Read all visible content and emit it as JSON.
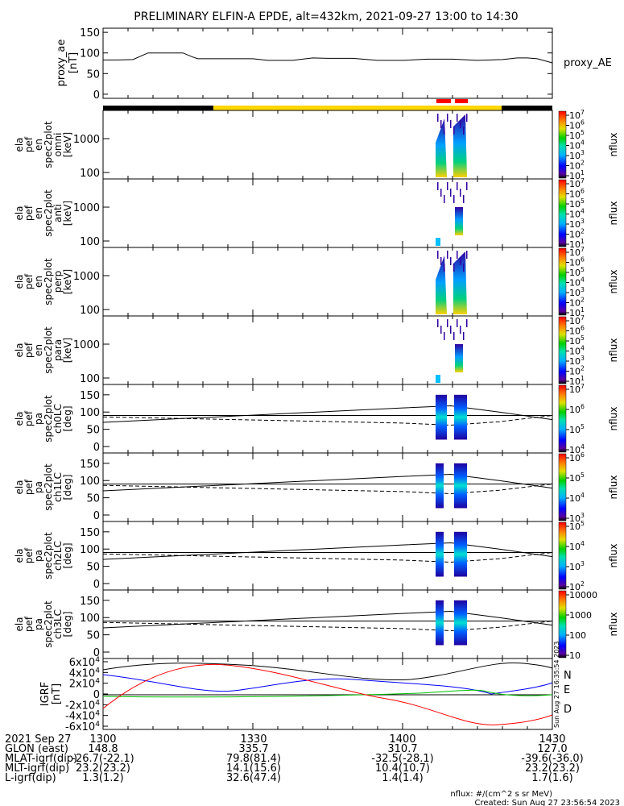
{
  "title": "PRELIMINARY ELFIN-A EPDE, alt=432km, 2021-09-27 13:00 to 14:30",
  "chart_data": [
    {
      "type": "line",
      "panel": "proxy_ae",
      "ylabel": [
        "proxy_ae",
        "[nT]"
      ],
      "legend": "proxy_AE",
      "ylim": [
        -10,
        160
      ],
      "yticks": [
        0,
        50,
        100,
        150
      ],
      "series": [
        {
          "x": [
            0,
            3,
            6,
            9,
            10,
            13,
            16,
            18,
            19,
            23,
            30,
            33,
            38,
            42,
            45,
            50,
            55,
            60,
            65,
            70,
            75,
            80,
            83,
            85,
            87,
            90
          ],
          "values": [
            83,
            83,
            84,
            100,
            100,
            100,
            100,
            90,
            86,
            86,
            86,
            82,
            82,
            88,
            87,
            87,
            82,
            82,
            85,
            85,
            82,
            84,
            88,
            88,
            86,
            76
          ]
        }
      ]
    },
    {
      "type": "heatmap",
      "panel": "omni",
      "ylabel": [
        "ela",
        "pef",
        "en",
        "spec2plot",
        "omni",
        "[keV]"
      ],
      "yticks": [
        "100",
        "1000"
      ],
      "colorbar": {
        "label": "nflux",
        "ticks": [
          "10^1",
          "10^2",
          "10^3",
          "10^4",
          "10^5",
          "10^6",
          "10^7"
        ]
      }
    },
    {
      "type": "heatmap",
      "panel": "anti",
      "ylabel": [
        "ela",
        "pef",
        "en",
        "spec2plot",
        "anti",
        "[keV]"
      ],
      "yticks": [
        "100",
        "1000"
      ],
      "colorbar": {
        "label": "nflux",
        "ticks": [
          "10^1",
          "10^2",
          "10^3",
          "10^4",
          "10^5",
          "10^6",
          "10^7"
        ]
      }
    },
    {
      "type": "heatmap",
      "panel": "perp",
      "ylabel": [
        "ela",
        "pef",
        "en",
        "spec2plot",
        "perp",
        "[keV]"
      ],
      "yticks": [
        "100",
        "1000"
      ],
      "colorbar": {
        "label": "nflux",
        "ticks": [
          "10^1",
          "10^2",
          "10^3",
          "10^4",
          "10^5",
          "10^6",
          "10^7"
        ]
      }
    },
    {
      "type": "heatmap",
      "panel": "para",
      "ylabel": [
        "ela",
        "pef",
        "en",
        "spec2plot",
        "para",
        "[keV]"
      ],
      "yticks": [
        "100",
        "1000"
      ],
      "colorbar": {
        "label": "nflux",
        "ticks": [
          "10^1",
          "10^2",
          "10^3",
          "10^4",
          "10^5",
          "10^6",
          "10^7"
        ]
      }
    },
    {
      "type": "heatmap",
      "panel": "ch0LC",
      "ylabel": [
        "ela",
        "pef",
        "pa",
        "spec2plot",
        "ch0LC",
        "[deg]"
      ],
      "yticks": [
        "0",
        "50",
        "100",
        "150"
      ],
      "colorbar": {
        "label": "nflux",
        "ticks": [
          "10^4",
          "10^5",
          "10^6",
          "10^7"
        ]
      }
    },
    {
      "type": "heatmap",
      "panel": "ch1LC",
      "ylabel": [
        "ela",
        "pef",
        "pa",
        "spec2plot",
        "ch1LC",
        "[deg]"
      ],
      "yticks": [
        "0",
        "50",
        "100",
        "150"
      ],
      "colorbar": {
        "label": "nflux",
        "ticks": [
          "10^3",
          "10^4",
          "10^5",
          "10^6"
        ]
      }
    },
    {
      "type": "heatmap",
      "panel": "ch2LC",
      "ylabel": [
        "ela",
        "pef",
        "pa",
        "spec2plot",
        "ch2LC",
        "[deg]"
      ],
      "yticks": [
        "0",
        "50",
        "100",
        "150"
      ],
      "colorbar": {
        "label": "nflux",
        "ticks": [
          "10^2",
          "10^3",
          "10^4",
          "10^5"
        ]
      }
    },
    {
      "type": "heatmap",
      "panel": "ch3LC",
      "ylabel": [
        "ela",
        "pef",
        "pa",
        "spec2plot",
        "ch3LC",
        "[deg]"
      ],
      "yticks": [
        "0",
        "50",
        "100",
        "150"
      ],
      "colorbar": {
        "label": "nflux",
        "ticks": [
          "10",
          "100",
          "1000",
          "10000"
        ]
      }
    },
    {
      "type": "line",
      "panel": "IGRF",
      "ylabel": [
        "IGRF",
        "[nT]"
      ],
      "yticks": [
        "-6x10^4",
        "-4x10^4",
        "-2x10^4",
        "0",
        "2x10^4",
        "4x10^4",
        "6x10^4"
      ],
      "series": [
        {
          "name": "N",
          "color": "#0000ff"
        },
        {
          "name": "E",
          "color": "#00c000"
        },
        {
          "name": "D",
          "color": "#ff0000"
        }
      ]
    }
  ],
  "xaxis": {
    "ticks": [
      "1300",
      "1330",
      "1400",
      "1430"
    ],
    "rows": [
      {
        "label": "2021 Sep 27",
        "values": [
          "1300",
          "1330",
          "1400",
          "1430"
        ]
      },
      {
        "label": "GLON (east)",
        "values": [
          "148.8",
          "335.7",
          "310.7",
          "127.0"
        ]
      },
      {
        "label": "MLAT-igrf(dip)",
        "values": [
          "-26.7(-22.1)",
          "79.8(81.4)",
          "-32.5(-28.1)",
          "-39.6(-36.0)"
        ]
      },
      {
        "label": "MLT-igrf(dip)",
        "values": [
          "23.2(23.2)",
          "14.1(15.6)",
          "10.4(10.7)",
          "23.2(23.2)"
        ]
      },
      {
        "label": "L-igrf(dip)",
        "values": [
          "1.3(1.2)",
          "32.6(47.4)",
          "1.4(1.4)",
          "1.7(1.6)"
        ]
      }
    ]
  },
  "footer": {
    "units": "nflux: #/(cm^2 s sr MeV)",
    "created": "Created: Sun Aug 27 23:56:54 2023",
    "side_stamp": "Sun Aug 27 16:35:54 2023"
  },
  "colors": {
    "sunlit_bar": "#ffd700",
    "eclipse_bar": "#000000",
    "marker": "#ff0000"
  }
}
